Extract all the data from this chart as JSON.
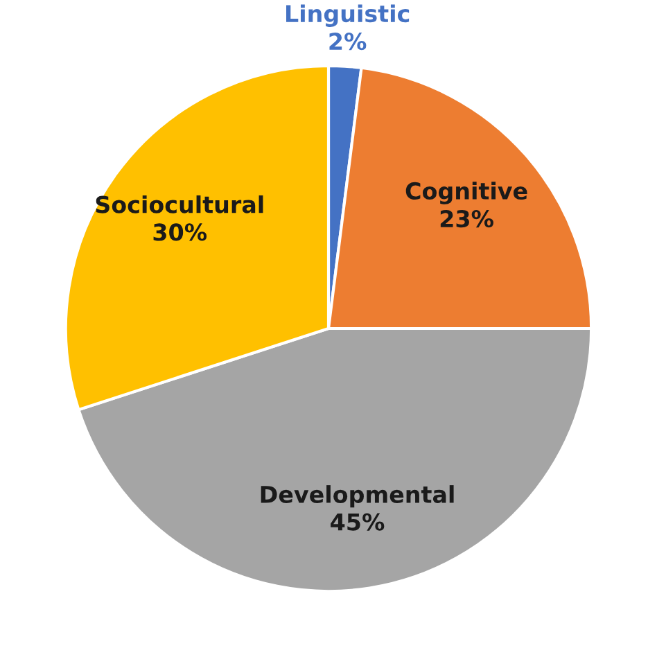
{
  "chart_data": {
    "type": "pie",
    "categories": [
      "Linguistic",
      "Cognitive",
      "Developmental",
      "Sociocultural"
    ],
    "values": [
      2,
      23,
      45,
      30
    ],
    "colors": [
      "#4472c4",
      "#ed7d31",
      "#a5a5a5",
      "#ffc000"
    ],
    "value_labels": [
      "2%",
      "23%",
      "45%",
      "30%"
    ],
    "legend": false
  }
}
